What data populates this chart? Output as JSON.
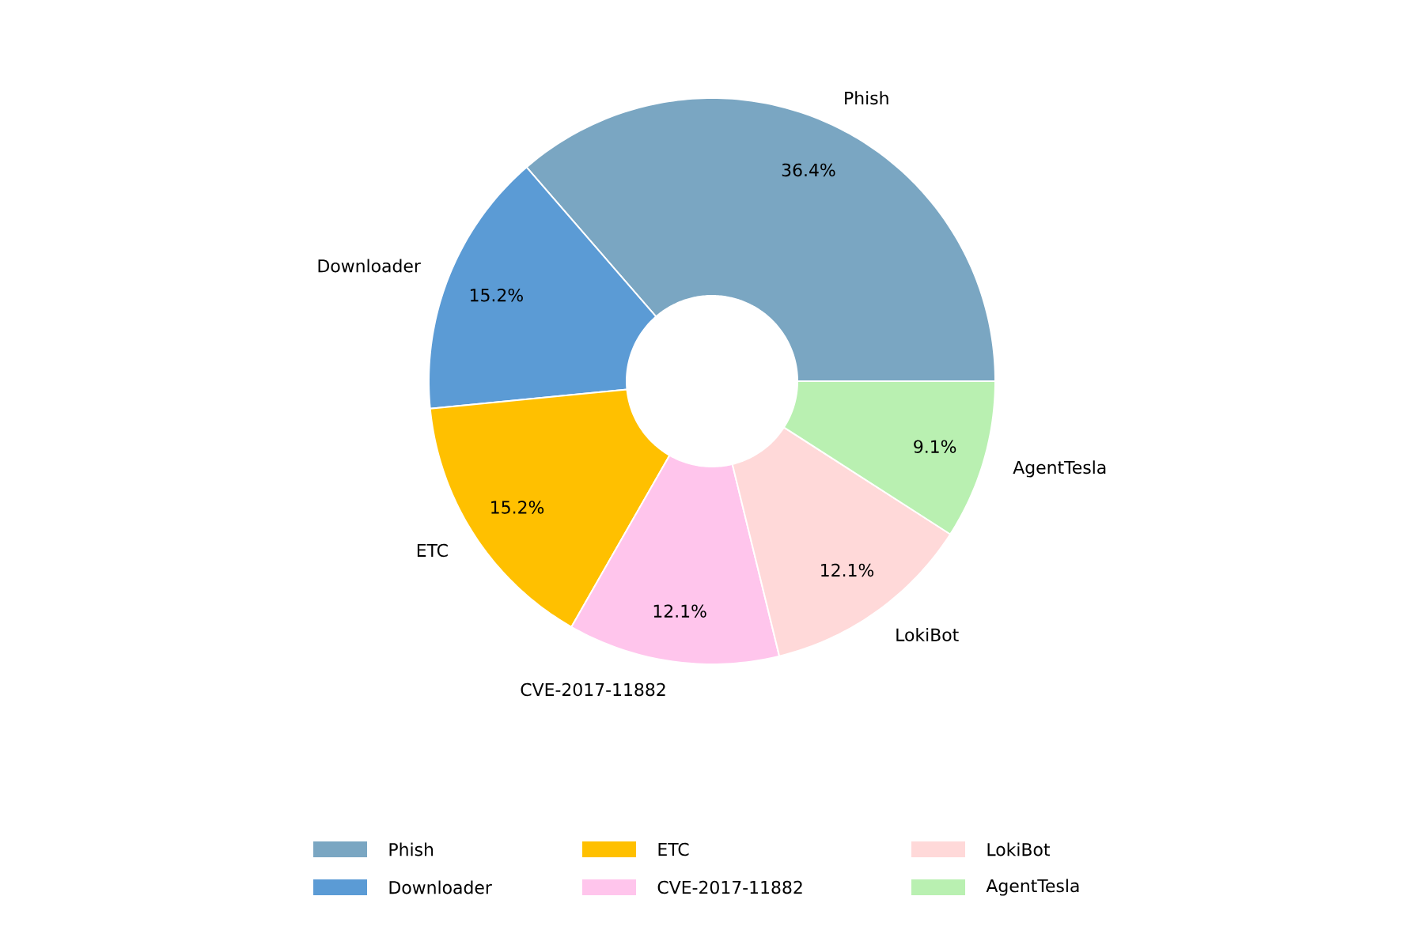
{
  "chart_data": {
    "type": "donut",
    "categories": [
      "Phish",
      "Downloader",
      "ETC",
      "CVE-2017-11882",
      "LokiBot",
      "AgentTesla"
    ],
    "values": [
      36.4,
      15.2,
      15.2,
      12.1,
      12.1,
      9.1
    ],
    "value_labels": [
      "36.4%",
      "15.2%",
      "15.2%",
      "12.1%",
      "12.1%",
      "9.1%"
    ],
    "colors": [
      "#7aa6c2",
      "#5b9bd5",
      "#ffc000",
      "#ffc5ec",
      "#ffd9d9",
      "#b9f0b1"
    ],
    "legend": "bottom"
  }
}
